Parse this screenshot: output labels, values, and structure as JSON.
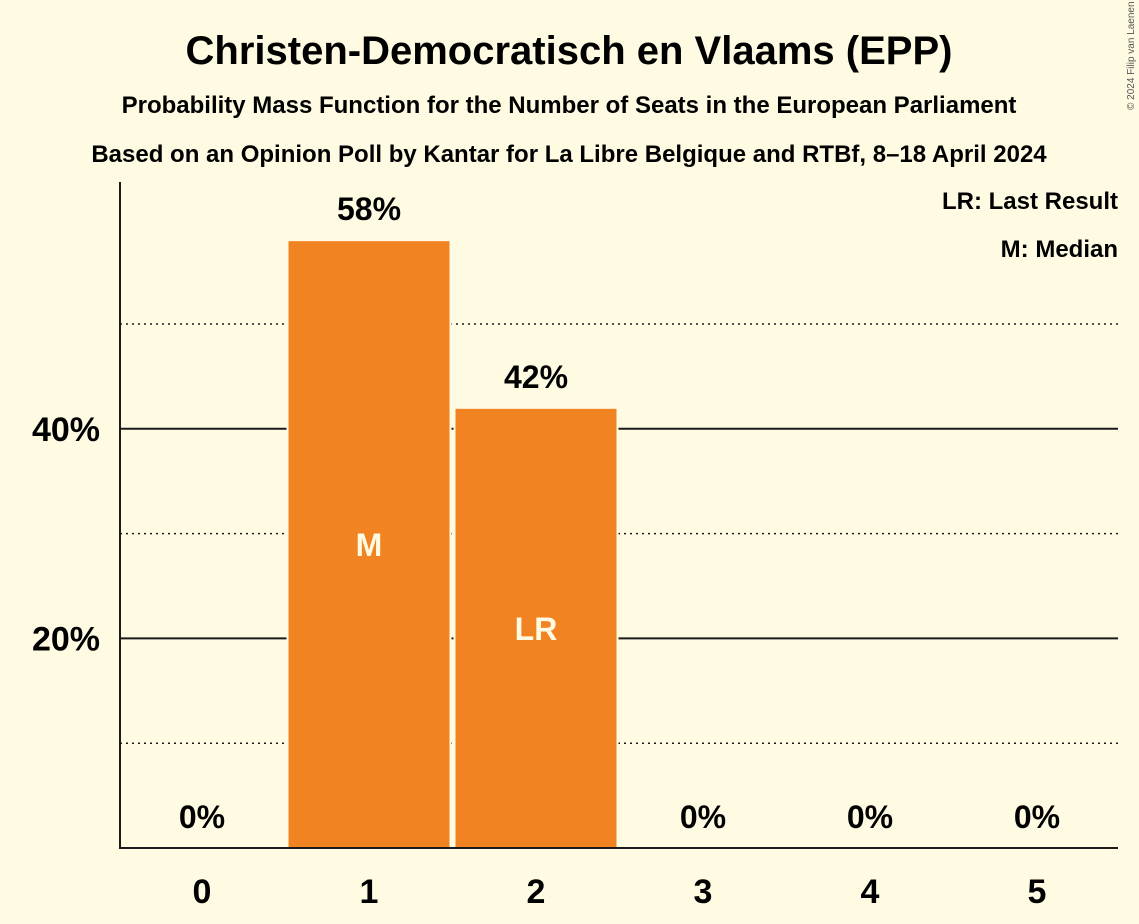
{
  "chart_data": {
    "type": "bar",
    "title": "Christen-Democratisch en Vlaams (EPP)",
    "subtitle": "Probability Mass Function for the Number of Seats in the European Parliament",
    "subtitle2": "Based on an Opinion Poll by Kantar for La Libre Belgique and RTBf, 8–18 April 2024",
    "categories": [
      "0",
      "1",
      "2",
      "3",
      "4",
      "5"
    ],
    "values": [
      0,
      58,
      42,
      0,
      0,
      0
    ],
    "value_labels": [
      "0%",
      "58%",
      "42%",
      "0%",
      "0%",
      "0%"
    ],
    "bar_marks": [
      "",
      "M",
      "LR",
      "",
      "",
      ""
    ],
    "ylim": [
      0,
      60
    ],
    "yticks": [
      {
        "value": 20,
        "label": "20%"
      },
      {
        "value": 40,
        "label": "40%"
      }
    ],
    "minor_gridlines": [
      10,
      30,
      50
    ],
    "grid": true,
    "legend": [
      "LR: Last Result",
      "M: Median"
    ],
    "legend_position": "top-right",
    "colors": {
      "bar": "#f28322",
      "background": "#fffbe2",
      "text": "#1a1a1a"
    },
    "copyright": "© 2024 Filip van Laenen"
  }
}
